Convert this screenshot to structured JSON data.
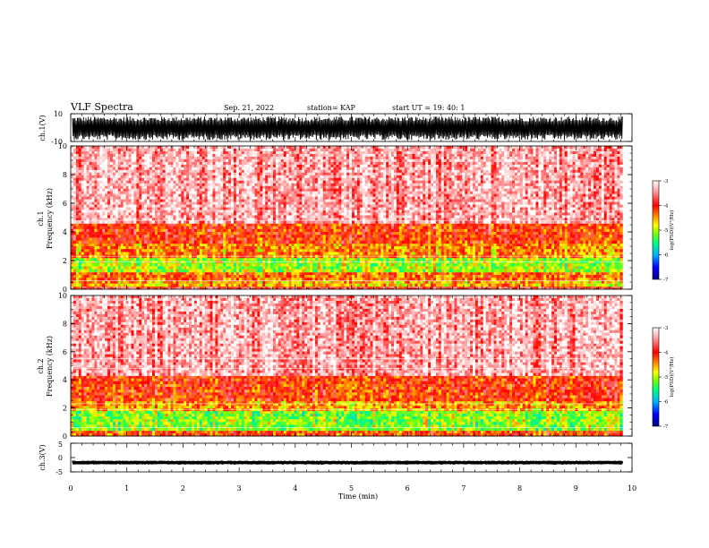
{
  "header": {
    "title": "VLF Spectra",
    "date": "Sep. 21, 2022",
    "station": "station= KAP",
    "start_ut": "start UT =  19: 40: 1"
  },
  "colors": {
    "background": "#ffffff",
    "trace": "#000000",
    "spectrogram_high": "#ff2a1a",
    "spectrogram_mid": "#ffe600",
    "spectrogram_low": "#3cd83c",
    "colormap": [
      "#000080",
      "#0000ff",
      "#00b4ff",
      "#00ff80",
      "#80ff00",
      "#ffff00",
      "#ff8000",
      "#ff0000",
      "#ffffff"
    ]
  },
  "chart_data": [
    {
      "type": "line",
      "name": "ch1-waveform",
      "ylabel": "ch.1(V)",
      "ylim": [
        -10,
        10
      ],
      "yticks": [
        "10",
        "-10"
      ],
      "xlim": [
        0,
        9.83
      ],
      "description_values": {
        "approx_amplitude_range": [
          -9,
          8
        ]
      },
      "fill": "dense-oscillation"
    },
    {
      "type": "heatmap",
      "name": "ch1-spectrogram",
      "ylabel": "ch.1\nFrequency (kHz)",
      "ylabel_top": "ch.1",
      "ylabel_bottom": "Frequency (kHz)",
      "ylim": [
        0,
        10
      ],
      "yticks": [
        "0",
        "2",
        "4",
        "6",
        "8",
        "10"
      ],
      "xlim": [
        0,
        9.83
      ],
      "bands_khz": [
        {
          "from": 0.0,
          "to": 0.2,
          "level": -3.8
        },
        {
          "from": 0.2,
          "to": 0.6,
          "level": -4.6
        },
        {
          "from": 0.6,
          "to": 1.2,
          "level": -4.3
        },
        {
          "from": 1.2,
          "to": 2.2,
          "level": -5.0
        },
        {
          "from": 2.2,
          "to": 3.2,
          "level": -4.4
        },
        {
          "from": 3.2,
          "to": 4.6,
          "level": -4.1
        },
        {
          "from": 4.6,
          "to": 10.0,
          "level": -3.4
        }
      ],
      "colorbar": {
        "label": "log(PSD)(V²/Hz)",
        "range": [
          -7,
          -3
        ],
        "ticks": [
          "-3",
          "-4",
          "-5",
          "-6",
          "-7"
        ]
      }
    },
    {
      "type": "heatmap",
      "name": "ch2-spectrogram",
      "ylabel": "ch.2\nFrequency (kHz)",
      "ylabel_top": "ch.2",
      "ylabel_bottom": "Frequency (kHz)",
      "ylim": [
        0,
        10
      ],
      "yticks": [
        "0",
        "2",
        "4",
        "6",
        "8",
        "10"
      ],
      "xlim": [
        0,
        9.83
      ],
      "bands_khz": [
        {
          "from": 0.0,
          "to": 0.4,
          "level": -4.2
        },
        {
          "from": 0.4,
          "to": 1.8,
          "level": -5.1
        },
        {
          "from": 1.8,
          "to": 2.5,
          "level": -4.5
        },
        {
          "from": 2.5,
          "to": 4.3,
          "level": -4.1
        },
        {
          "from": 4.3,
          "to": 10.0,
          "level": -3.4
        }
      ],
      "colorbar": {
        "label": "log(PSD)(V²/Hz)",
        "range": [
          -7,
          -3
        ],
        "ticks": [
          "-3",
          "-4",
          "-5",
          "-6",
          "-7"
        ]
      }
    },
    {
      "type": "line",
      "name": "ch3-waveform",
      "ylabel": "ch.3(V)",
      "ylim": [
        -5,
        5
      ],
      "yticks": [
        "5",
        "0",
        "-5"
      ],
      "xlim": [
        0,
        9.83
      ],
      "description_values": {
        "approx_level": -1.8,
        "approx_amplitude_range": [
          -2.2,
          -1.3
        ]
      },
      "fill": "narrow-band"
    }
  ],
  "xaxis": {
    "label": "Time (min)",
    "range": [
      0,
      10
    ],
    "ticks": [
      "0",
      "1",
      "2",
      "3",
      "4",
      "5",
      "6",
      "7",
      "8",
      "9",
      "10"
    ]
  }
}
